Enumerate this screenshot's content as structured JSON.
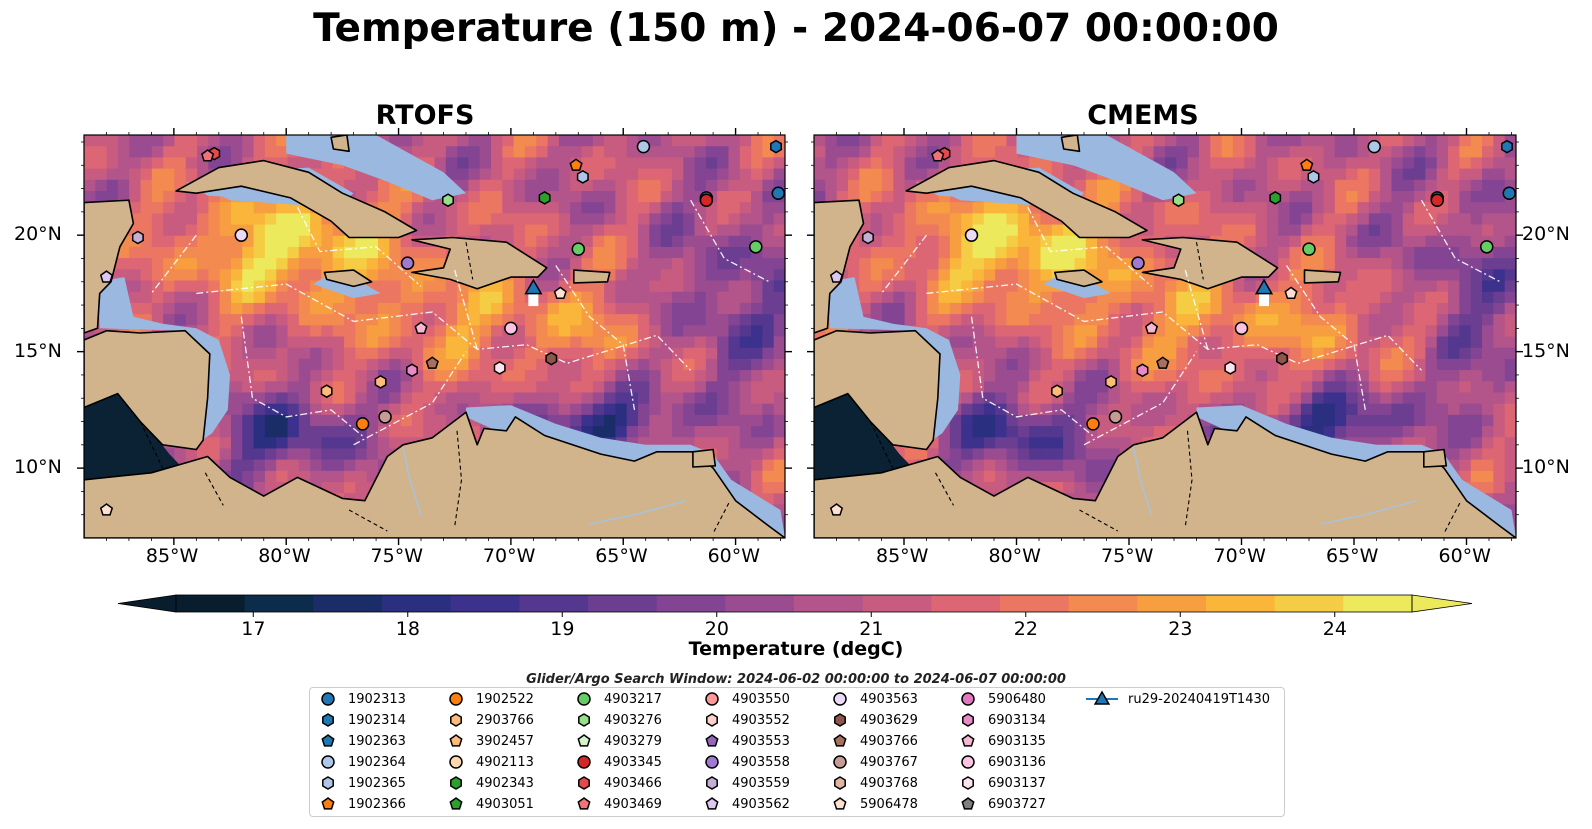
{
  "title": "Temperature (150 m) - 2024-06-07 00:00:00",
  "panels": [
    {
      "title": "RTOFS"
    },
    {
      "title": "CMEMS"
    }
  ],
  "lon_ticks": [
    "85°W",
    "80°W",
    "75°W",
    "70°W",
    "65°W",
    "60°W"
  ],
  "lat_ticks": [
    "20°N",
    "15°N",
    "10°N"
  ],
  "colorbar": {
    "label": "Temperature (degC)",
    "ticks": [
      "17",
      "18",
      "19",
      "20",
      "21",
      "22",
      "23",
      "24"
    ],
    "range": [
      16.5,
      24.5
    ],
    "colors": [
      "#081e2e",
      "#0d2b4b",
      "#1a2d68",
      "#2a2f80",
      "#3c318c",
      "#54378f",
      "#6b3e91",
      "#834593",
      "#9b4c91",
      "#b3548a",
      "#c85c80",
      "#dc6673",
      "#eb7662",
      "#f38a4f",
      "#f79f40",
      "#f9b63a",
      "#f5cd45",
      "#ecea5c"
    ]
  },
  "search_window": "Glider/Argo Search Window: 2024-06-02 00:00:00 to 2024-06-07 00:00:00",
  "legend": {
    "entries": [
      {
        "label": "1902313",
        "marker": "circle",
        "color": "#1f77b4"
      },
      {
        "label": "1902314",
        "marker": "hexagon",
        "color": "#1f77b4"
      },
      {
        "label": "1902363",
        "marker": "pentagon",
        "color": "#1f77b4"
      },
      {
        "label": "1902364",
        "marker": "circle",
        "color": "#aec7e8"
      },
      {
        "label": "1902365",
        "marker": "hexagon",
        "color": "#aec7e8"
      },
      {
        "label": "1902366",
        "marker": "pentagon",
        "color": "#ff7f0e"
      },
      {
        "label": "1902522",
        "marker": "circle",
        "color": "#ff7f0e"
      },
      {
        "label": "2903766",
        "marker": "hexagon",
        "color": "#ffbb78"
      },
      {
        "label": "3902457",
        "marker": "pentagon",
        "color": "#ffbb78"
      },
      {
        "label": "4902113",
        "marker": "circle",
        "color": "#ffd8b1"
      },
      {
        "label": "4902343",
        "marker": "hexagon",
        "color": "#2ca02c"
      },
      {
        "label": "4903051",
        "marker": "pentagon",
        "color": "#2ca02c"
      },
      {
        "label": "4903217",
        "marker": "circle",
        "color": "#66cc66"
      },
      {
        "label": "4903276",
        "marker": "hexagon",
        "color": "#98df8a"
      },
      {
        "label": "4903279",
        "marker": "pentagon",
        "color": "#d4f5cc"
      },
      {
        "label": "4903345",
        "marker": "circle",
        "color": "#d62728"
      },
      {
        "label": "4903466",
        "marker": "hexagon",
        "color": "#e34a4a"
      },
      {
        "label": "4903469",
        "marker": "pentagon",
        "color": "#f2727a"
      },
      {
        "label": "4903550",
        "marker": "circle",
        "color": "#ff9896"
      },
      {
        "label": "4903552",
        "marker": "hexagon",
        "color": "#ffd0cc"
      },
      {
        "label": "4903553",
        "marker": "pentagon",
        "color": "#9467bd"
      },
      {
        "label": "4903558",
        "marker": "circle",
        "color": "#a07ad0"
      },
      {
        "label": "4903559",
        "marker": "hexagon",
        "color": "#c5b0d5"
      },
      {
        "label": "4903562",
        "marker": "pentagon",
        "color": "#dcc8f0"
      },
      {
        "label": "4903563",
        "marker": "circle",
        "color": "#ead9f7"
      },
      {
        "label": "4903629",
        "marker": "hexagon",
        "color": "#8c564b"
      },
      {
        "label": "4903766",
        "marker": "pentagon",
        "color": "#a9705f"
      },
      {
        "label": "4903767",
        "marker": "circle",
        "color": "#c49c94"
      },
      {
        "label": "4903768",
        "marker": "hexagon",
        "color": "#e2b4a4"
      },
      {
        "label": "5906478",
        "marker": "pentagon",
        "color": "#fde0d2"
      },
      {
        "label": "5906480",
        "marker": "circle",
        "color": "#e377c2"
      },
      {
        "label": "6903134",
        "marker": "hexagon",
        "color": "#e88ac8"
      },
      {
        "label": "6903135",
        "marker": "pentagon",
        "color": "#f7b6d2"
      },
      {
        "label": "6903136",
        "marker": "circle",
        "color": "#fbc4e2"
      },
      {
        "label": "6903137",
        "marker": "hexagon",
        "color": "#fde3f0"
      },
      {
        "label": "6903727",
        "marker": "pentagon",
        "color": "#7f7f7f"
      },
      {
        "label": "ru29-20240419T1430",
        "marker": "triangle-line",
        "color": "#1f77b4"
      }
    ]
  },
  "map_colors": {
    "land": "#d2b48c",
    "shelf": "#9bb8e0",
    "deep_dark": "#0a2233",
    "coast": "#000000"
  },
  "argo_floats": [
    {
      "id": "1902313",
      "lon": -61.3,
      "lat": 21.6
    },
    {
      "id": "1902313",
      "lon": -58.1,
      "lat": 21.8
    },
    {
      "id": "1902314",
      "lon": -58.2,
      "lat": 23.8
    },
    {
      "id": "1902364",
      "lon": -64.1,
      "lat": 23.8
    },
    {
      "id": "1902365",
      "lon": -66.8,
      "lat": 22.5
    },
    {
      "id": "1902366",
      "lon": -67.1,
      "lat": 23.0
    },
    {
      "id": "4902343",
      "lon": -68.5,
      "lat": 21.6
    },
    {
      "id": "4903276",
      "lon": -72.8,
      "lat": 21.5
    },
    {
      "id": "4903217",
      "lon": -67.0,
      "lat": 19.4
    },
    {
      "id": "4903217",
      "lon": -59.1,
      "lat": 19.5
    },
    {
      "id": "4903345",
      "lon": -61.3,
      "lat": 21.5
    },
    {
      "id": "4903466",
      "lon": -83.2,
      "lat": 23.5
    },
    {
      "id": "4903469",
      "lon": -83.5,
      "lat": 23.4
    },
    {
      "id": "4903559",
      "lon": -86.6,
      "lat": 19.9
    },
    {
      "id": "4903563",
      "lon": -82.0,
      "lat": 20.0
    },
    {
      "id": "4903558",
      "lon": -74.6,
      "lat": 18.8
    },
    {
      "id": "5906478",
      "lon": -67.8,
      "lat": 17.5
    },
    {
      "id": "6903135",
      "lon": -74.0,
      "lat": 16.0
    },
    {
      "id": "6903136",
      "lon": -70.0,
      "lat": 16.0
    },
    {
      "id": "6903134",
      "lon": -74.4,
      "lat": 14.2
    },
    {
      "id": "4903766",
      "lon": -73.5,
      "lat": 14.5
    },
    {
      "id": "4903629",
      "lon": -68.2,
      "lat": 14.7
    },
    {
      "id": "6903137",
      "lon": -70.5,
      "lat": 14.3
    },
    {
      "id": "2903766",
      "lon": -78.2,
      "lat": 13.3
    },
    {
      "id": "2903766",
      "lon": -75.8,
      "lat": 13.7
    },
    {
      "id": "1902522",
      "lon": -76.6,
      "lat": 11.9
    },
    {
      "id": "4903767",
      "lon": -75.6,
      "lat": 12.2
    },
    {
      "id": "4903562",
      "lon": -88.0,
      "lat": 18.2
    },
    {
      "id": "5906478",
      "lon": -88.0,
      "lat": 8.2
    }
  ],
  "glider": {
    "id": "ru29-20240419T1430",
    "lon": -69.0,
    "lat": 17.6
  }
}
